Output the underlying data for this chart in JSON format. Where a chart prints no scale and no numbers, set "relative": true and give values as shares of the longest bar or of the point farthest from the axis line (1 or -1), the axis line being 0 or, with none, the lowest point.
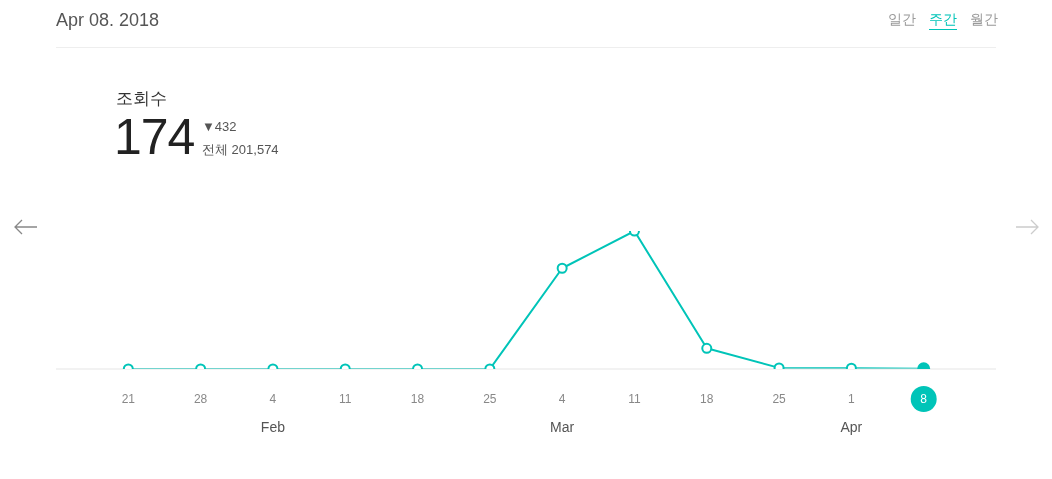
{
  "chart_data": {
    "type": "line",
    "title": "Apr 08. 2018",
    "subtitle": "조회수",
    "x": [
      "2018-01-21",
      "2018-01-28",
      "2018-02-04",
      "2018-02-11",
      "2018-02-18",
      "2018-02-25",
      "2018-03-04",
      "2018-03-11",
      "2018-03-18",
      "2018-03-25",
      "2018-04-01",
      "2018-04-08"
    ],
    "xlim": [
      "2018-01-14",
      "2018-04-15"
    ],
    "xticks": [
      {
        "value": "2018-01-21",
        "label": "21"
      },
      {
        "value": "2018-01-28",
        "label": "28"
      },
      {
        "value": "2018-02-04",
        "label": "4\nFeb"
      },
      {
        "value": "2018-02-11",
        "label": "11"
      },
      {
        "value": "2018-02-18",
        "label": "18"
      },
      {
        "value": "2018-02-25",
        "label": "25"
      },
      {
        "value": "2018-03-04",
        "label": "4\nMar"
      },
      {
        "value": "2018-03-11",
        "label": "11"
      },
      {
        "value": "2018-03-18",
        "label": "18"
      },
      {
        "value": "2018-03-25",
        "label": "25"
      },
      {
        "value": "2018-04-01",
        "label": "1\nApr"
      },
      {
        "value": "2018-04-08",
        "label": "8"
      }
    ],
    "values": [
      0,
      0,
      0,
      0,
      0,
      0,
      0.73,
      1,
      0.15,
      0.008,
      0.006,
      0.002
    ],
    "color": "#00c4b8",
    "relative": true,
    "marker": "circle",
    "line_style": "solid",
    "annotations": [
      "일간",
      "주간",
      "월간",
      "174",
      "▼432",
      "전체 201,574"
    ]
  }
}
